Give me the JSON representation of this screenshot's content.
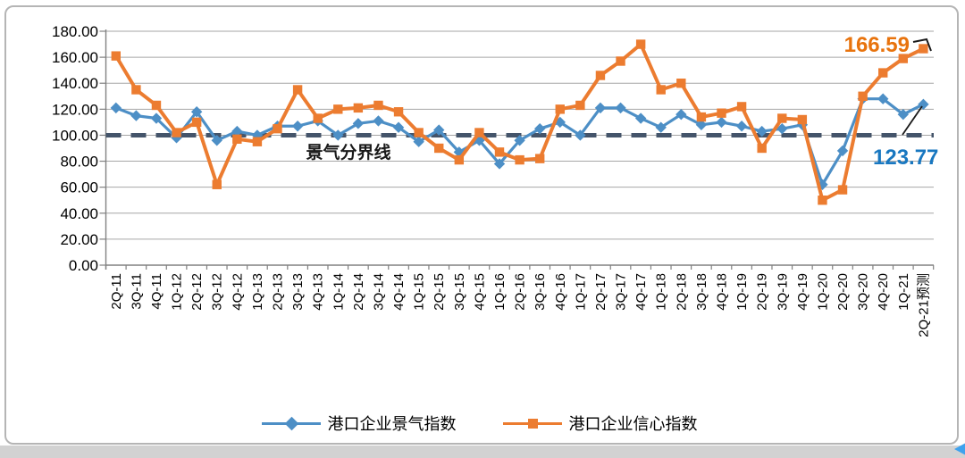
{
  "chart_data": {
    "type": "line",
    "title": "",
    "xlabel": "",
    "ylabel": "",
    "ylim": [
      0,
      180
    ],
    "ytick_step": 20,
    "grid": true,
    "legend_position": "bottom",
    "y_ticks": [
      "180.00",
      "160.00",
      "140.00",
      "120.00",
      "100.00",
      "80.00",
      "60.00",
      "40.00",
      "20.00",
      "0.00"
    ],
    "categories": [
      "2Q-11",
      "3Q-11",
      "4Q-11",
      "1Q-12",
      "2Q-12",
      "3Q-12",
      "4Q-12",
      "1Q-13",
      "2Q-13",
      "3Q-13",
      "4Q-13",
      "1Q-14",
      "2Q-14",
      "3Q-14",
      "4Q-14",
      "1Q-15",
      "2Q-15",
      "3Q-15",
      "4Q-15",
      "1Q-16",
      "2Q-16",
      "3Q-16",
      "4Q-16",
      "1Q-17",
      "2Q-17",
      "3Q-17",
      "4Q-17",
      "1Q-18",
      "2Q-18",
      "3Q-18",
      "4Q-18",
      "1Q-19",
      "2Q-19",
      "3Q-19",
      "4Q-19",
      "1Q-20",
      "2Q-20",
      "3Q-20",
      "4Q-20",
      "1Q-21",
      "2Q-21预测"
    ],
    "series": [
      {
        "name": "港口企业景气指数",
        "color": "#4D8FC6",
        "marker": "diamond",
        "values": [
          121,
          115,
          113,
          98,
          118,
          96,
          103,
          100,
          107,
          107,
          111,
          100,
          109,
          111,
          106,
          95,
          104,
          87,
          96,
          78,
          96,
          105,
          110,
          100,
          121,
          121,
          113,
          106,
          116,
          108,
          110,
          107,
          103,
          105,
          108,
          62,
          88,
          128,
          128,
          116,
          123.77
        ]
      },
      {
        "name": "港口企业信心指数",
        "color": "#EC7C30",
        "marker": "square",
        "values": [
          161,
          135,
          123,
          102,
          110,
          62,
          97,
          95,
          105,
          135,
          113,
          120,
          121,
          123,
          118,
          102,
          90,
          81,
          102,
          87,
          81,
          82,
          120,
          123,
          146,
          157,
          170,
          135,
          140,
          114,
          117,
          122,
          90,
          113,
          112,
          50,
          58,
          130,
          148,
          159,
          166.59
        ]
      }
    ],
    "reference_line": {
      "value": 100,
      "label": "景气分界线",
      "color": "#44546A"
    },
    "annotations": [
      {
        "text": "166.59",
        "color": "#E8730D",
        "series": "港口企业信心指数"
      },
      {
        "text": "123.77",
        "color": "#1877C0",
        "series": "港口企业景气指数"
      }
    ]
  },
  "colors": {
    "gridline": "#A6A6A6",
    "axis": "#808080",
    "corner_glyph": "#3FA2EE"
  }
}
